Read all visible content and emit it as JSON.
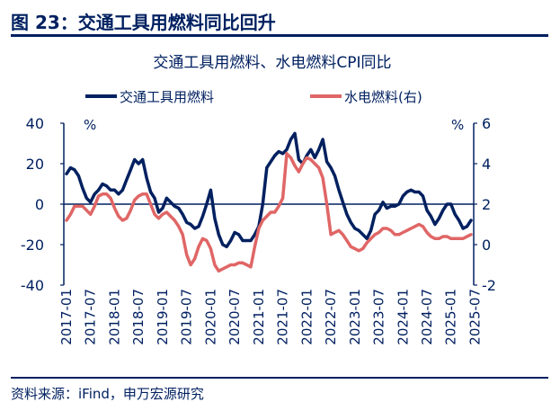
{
  "figure": {
    "title": "图 23：交通工具用燃料同比回升",
    "source": "资料来源：iFind，申万宏源研究"
  },
  "colors": {
    "navy": "#002060",
    "red": "#e06666",
    "text": "#002060"
  },
  "chart_data": {
    "type": "line",
    "title": "交通工具用燃料、水电燃料CPI同比",
    "y_left_unit": "%",
    "y_right_unit": "%",
    "y_left_lim": [
      -40,
      40
    ],
    "y_left_ticks": [
      "40",
      "20",
      "0",
      "-20",
      "-40"
    ],
    "y_right_lim": [
      -2,
      6
    ],
    "y_right_ticks": [
      "6",
      "4",
      "2",
      "0",
      "-2"
    ],
    "x_tick_labels": [
      "2017-01",
      "2017-07",
      "2018-01",
      "2018-07",
      "2019-01",
      "2019-07",
      "2020-01",
      "2020-07",
      "2021-01",
      "2021-07",
      "2022-01",
      "2022-07",
      "2023-01",
      "2023-07",
      "2024-01",
      "2024-07",
      "2025-01",
      "2025-07"
    ],
    "x_start": "2017-01",
    "legend_position": "top",
    "series": [
      {
        "name": "交通工具用燃料",
        "axis": "left",
        "color": "#002060",
        "values": [
          15,
          18,
          17,
          14,
          8,
          3,
          1,
          5,
          7,
          10,
          9,
          7,
          7,
          5,
          7,
          12,
          17,
          22,
          20,
          22,
          13,
          6,
          3,
          -4,
          -2,
          3,
          1,
          -1,
          -2,
          -5,
          -9,
          -10,
          -12,
          -11,
          -6,
          0,
          7,
          -7,
          -15,
          -20,
          -21,
          -18,
          -14,
          -15,
          -18,
          -18,
          -18,
          -15,
          -11,
          0,
          18,
          21,
          24,
          26,
          25,
          27,
          32,
          35,
          22,
          20,
          24,
          27,
          23,
          27,
          32,
          21,
          18,
          14,
          7,
          1,
          -5,
          -9,
          -12,
          -13,
          -15,
          -17,
          -13,
          -5,
          -3,
          1,
          -2,
          -1,
          -1,
          0,
          4,
          6,
          7,
          6,
          6,
          4,
          -3,
          -6,
          -10,
          -7,
          -3,
          0,
          0,
          -5,
          -8,
          -12,
          -11,
          -8
        ]
      },
      {
        "name": "水电燃料(右)",
        "axis": "right",
        "color": "#e06666",
        "values": [
          1.2,
          1.5,
          1.9,
          1.9,
          1.9,
          1.7,
          1.5,
          1.9,
          2.4,
          2.5,
          2.5,
          2.3,
          1.8,
          1.4,
          1.2,
          1.3,
          1.7,
          2.2,
          2.4,
          2.5,
          2.5,
          2.0,
          1.5,
          1.3,
          1.5,
          1.6,
          1.4,
          1.2,
          0.9,
          0.5,
          -0.5,
          -1.0,
          -0.7,
          -0.1,
          0.3,
          0.2,
          -0.2,
          -1.0,
          -1.3,
          -1.2,
          -1.1,
          -1.0,
          -1.0,
          -0.9,
          -0.9,
          -1.0,
          -1.1,
          -0.1,
          0.8,
          1.2,
          1.4,
          1.6,
          1.6,
          1.9,
          2.3,
          4.5,
          4.3,
          3.9,
          3.6,
          4.0,
          4.3,
          4.2,
          4.0,
          3.8,
          3.3,
          2.0,
          0.5,
          0.6,
          0.7,
          0.5,
          0.2,
          -0.1,
          -0.2,
          -0.3,
          -0.2,
          0.1,
          0.3,
          0.5,
          0.6,
          0.8,
          0.8,
          0.7,
          0.5,
          0.5,
          0.6,
          0.7,
          0.8,
          0.9,
          1.0,
          0.9,
          0.6,
          0.4,
          0.3,
          0.3,
          0.4,
          0.4,
          0.3,
          0.3,
          0.3,
          0.3,
          0.4,
          0.5
        ]
      }
    ]
  }
}
